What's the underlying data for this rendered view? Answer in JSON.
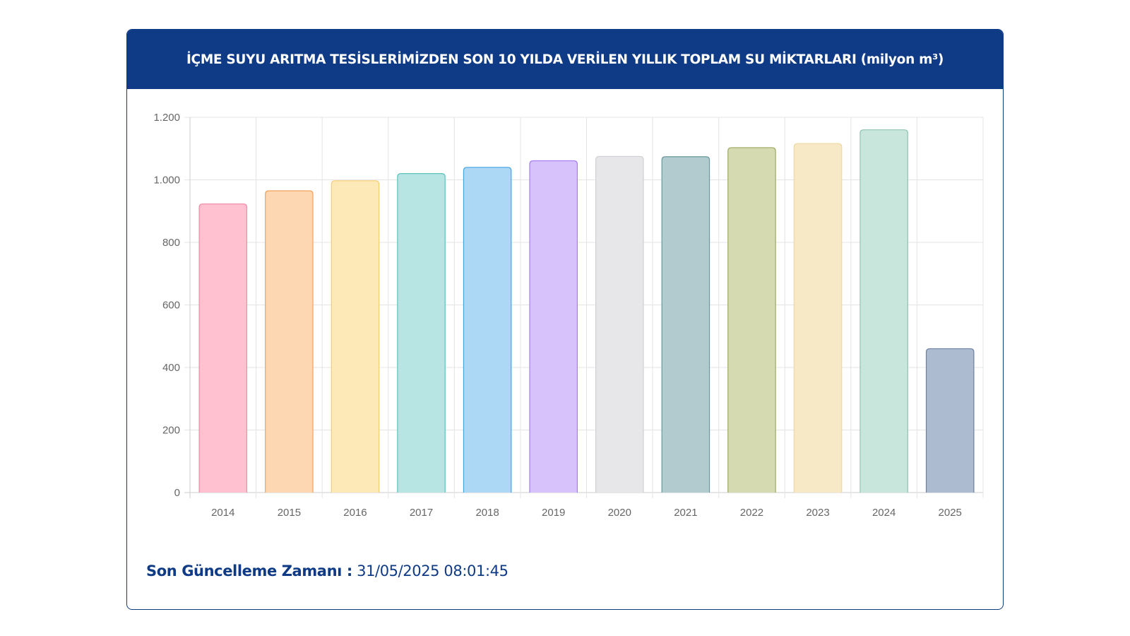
{
  "chart_data": {
    "type": "bar",
    "title": "İÇME SUYU ARITMA TESİSLERİMİZDEN SON 10 YILDA VERİLEN YILLIK TOPLAM SU MİKTARLARI (milyon m³)",
    "categories": [
      "2014",
      "2015",
      "2016",
      "2017",
      "2018",
      "2019",
      "2020",
      "2021",
      "2022",
      "2023",
      "2024",
      "2025"
    ],
    "values": [
      923,
      965,
      997,
      1020,
      1040,
      1061,
      1075,
      1074,
      1103,
      1116,
      1160,
      460
    ],
    "ylim": [
      0,
      1200
    ],
    "yticks": [
      0,
      200,
      400,
      600,
      800,
      1000,
      1200
    ],
    "ytick_labels": [
      "0",
      "200",
      "400",
      "600",
      "800",
      "1.000",
      "1.200"
    ],
    "grid": true,
    "legend": "none",
    "fill_colors": [
      "#ffc1cf",
      "#fdd7b1",
      "#fde8b8",
      "#b6e5e3",
      "#acd8f6",
      "#d7c2fb",
      "#e7e7ea",
      "#b1cbcf",
      "#d6dab0",
      "#f8e9c6",
      "#c9e6dc",
      "#adbbd1"
    ],
    "border_colors": [
      "#f08aa5",
      "#f2a35a",
      "#f5cd6e",
      "#5cc3bf",
      "#46a4e0",
      "#a77ef0",
      "#d0d0d4",
      "#6b989e",
      "#9fa860",
      "#eed9a0",
      "#8fc4b2",
      "#6d7fa2"
    ]
  },
  "footer": {
    "label": "Son Güncelleme Zamanı :",
    "value": "31/05/2025 08:01:45"
  },
  "colors": {
    "header_bg": "#0f3a85"
  }
}
